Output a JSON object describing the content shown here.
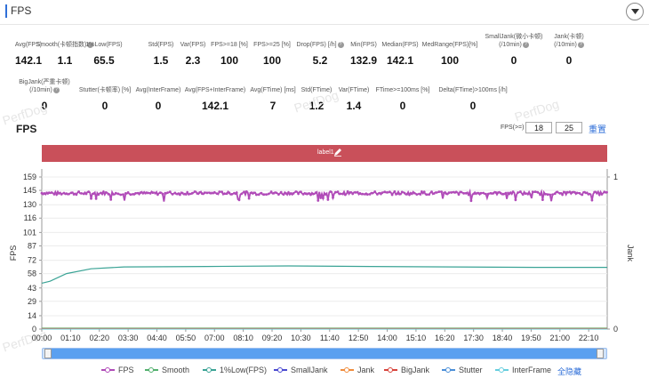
{
  "header": {
    "title": "FPS"
  },
  "stats_row1": [
    {
      "label": "Avg(FPS)",
      "value": "142.1",
      "help": false
    },
    {
      "label": "Smooth(卡顿指数)",
      "value": "1.1",
      "help": true
    },
    {
      "label": "1%Low(FPS)",
      "value": "65.5",
      "help": false
    },
    {
      "label": "Std(FPS)",
      "value": "1.5",
      "help": false
    },
    {
      "label": "Var(FPS)",
      "value": "2.3",
      "help": false
    },
    {
      "label": "FPS>=18 [%]",
      "value": "100",
      "help": false
    },
    {
      "label": "FPS>=25 [%]",
      "value": "100",
      "help": false
    },
    {
      "label": "Drop(FPS) [/h]",
      "value": "5.2",
      "help": true
    },
    {
      "label": "Min(FPS)",
      "value": "132.9",
      "help": false
    },
    {
      "label": "Median(FPS)",
      "value": "142.1",
      "help": false
    },
    {
      "label": "MedRange(FPS)[%]",
      "value": "100",
      "help": false
    },
    {
      "label": "SmallJank(微小卡顿)",
      "label2": "(/10min)",
      "value": "0",
      "help": true
    },
    {
      "label": "Jank(卡顿)",
      "label2": "(/10min)",
      "value": "0",
      "help": true
    }
  ],
  "stats_row2": [
    {
      "label": "BigJank(严重卡顿)",
      "label2": "(/10min)",
      "value": "0",
      "help": true
    },
    {
      "label": "Stutter(卡顿率) [%]",
      "value": "0",
      "help": false
    },
    {
      "label": "Avg(InterFrame)",
      "value": "0",
      "help": false
    },
    {
      "label": "Avg(FPS+InterFrame)",
      "value": "142.1",
      "help": false
    },
    {
      "label": "Avg(FTime) [ms]",
      "value": "7",
      "help": false
    },
    {
      "label": "Std(FTime)",
      "value": "1.2",
      "help": false
    },
    {
      "label": "Var(FTime)",
      "value": "1.4",
      "help": false
    },
    {
      "label": "FTime>=100ms [%]",
      "value": "0",
      "help": false
    },
    {
      "label": "Delta(FTime)>100ms [/h]",
      "value": "0",
      "help": false
    }
  ],
  "watermark": "PerfDog",
  "chart_controls": {
    "title": "FPS",
    "threshold_label": "FPS(>=)",
    "threshold_1": "18",
    "threshold_2": "25",
    "reset_label": "重置",
    "band_label": "label1"
  },
  "colors": {
    "accent": "#2f6fd8",
    "label_band": "#c9505a",
    "fps": "#b04bb8",
    "smooth": "#52b06e",
    "low1": "#3aa395",
    "smalljank": "#4a4ad0",
    "jank": "#f08c3c",
    "bigjank": "#d8443c",
    "stutter": "#4a8ed8",
    "interframe": "#66cede"
  },
  "chart_data": {
    "type": "line",
    "ylabel": "FPS",
    "y2label": "Jank",
    "ylim": [
      0,
      159
    ],
    "y_ticks": [
      "0",
      "14",
      "29",
      "43",
      "58",
      "72",
      "87",
      "101",
      "116",
      "130",
      "145",
      "159"
    ],
    "y2_ticks": [
      "0",
      "1"
    ],
    "x_ticks": [
      "00:00",
      "01:10",
      "02:20",
      "03:30",
      "04:40",
      "05:50",
      "07:00",
      "08:10",
      "09:20",
      "10:30",
      "11:40",
      "12:50",
      "14:00",
      "15:10",
      "16:20",
      "17:30",
      "18:40",
      "19:50",
      "21:00",
      "22:10"
    ],
    "x_range_seconds": [
      0,
      1375
    ],
    "grid": true,
    "legend_position": "bottom",
    "series": [
      {
        "name": "FPS",
        "approx_level": 142.1,
        "min": 132.9,
        "max": 145
      },
      {
        "name": "Smooth",
        "approx_level": 1.1
      },
      {
        "name": "1%Low(FPS)",
        "points": [
          [
            0,
            48
          ],
          [
            20,
            50
          ],
          [
            60,
            58
          ],
          [
            120,
            63
          ],
          [
            200,
            65
          ],
          [
            400,
            65.5
          ],
          [
            600,
            66
          ],
          [
            800,
            65.5
          ],
          [
            1000,
            65
          ],
          [
            1200,
            64.5
          ],
          [
            1375,
            64.5
          ]
        ]
      },
      {
        "name": "SmallJank",
        "approx_level": 0
      },
      {
        "name": "Jank",
        "approx_level": 0
      },
      {
        "name": "BigJank",
        "approx_level": 0
      },
      {
        "name": "Stutter",
        "approx_level": 0
      },
      {
        "name": "InterFrame",
        "approx_level": 0
      }
    ]
  },
  "legend": {
    "items": [
      "FPS",
      "Smooth",
      "1%Low(FPS)",
      "SmallJank",
      "Jank",
      "BigJank",
      "Stutter",
      "InterFrame"
    ],
    "toggle_label": "全隐藏"
  }
}
